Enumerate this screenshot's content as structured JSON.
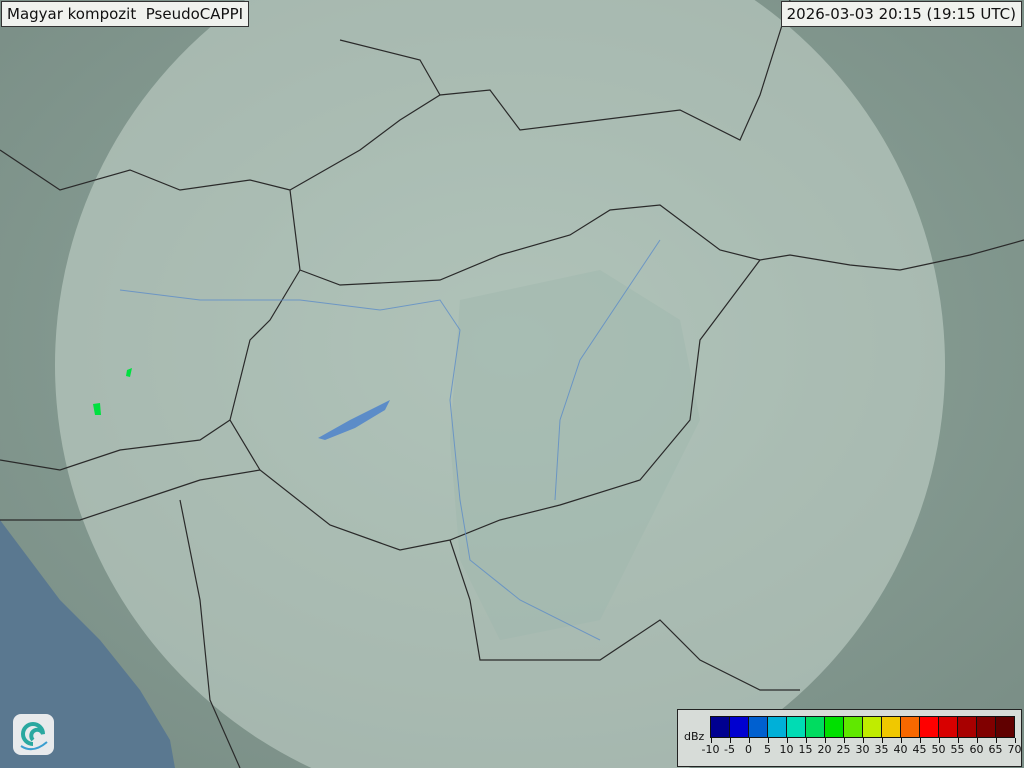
{
  "header": {
    "title": "Magyar kompozit  PseudoCAPPI",
    "timestamp": "2026-03-03 20:15 (19:15 UTC)"
  },
  "logo": {
    "icon": "swirl-logo-icon"
  },
  "legend": {
    "unit": "dBz",
    "ticks": [
      "-10",
      "-5",
      "0",
      "5",
      "10",
      "15",
      "20",
      "25",
      "30",
      "35",
      "40",
      "45",
      "50",
      "55",
      "60",
      "65",
      "70"
    ],
    "colors": [
      "#000090",
      "#0000d0",
      "#0060d0",
      "#00b0d8",
      "#00dcb4",
      "#00dc60",
      "#00e000",
      "#60e800",
      "#c0ec00",
      "#f0c800",
      "#f86800",
      "#ff0000",
      "#d80000",
      "#a80000",
      "#800000",
      "#600000"
    ]
  },
  "colors": {
    "terrain": "#7f948a",
    "coverage": "#c8d8d0",
    "sea": "#5a7890",
    "border": "#2a2a2a",
    "river": "#5c8cc8",
    "echo": "#00e040"
  }
}
